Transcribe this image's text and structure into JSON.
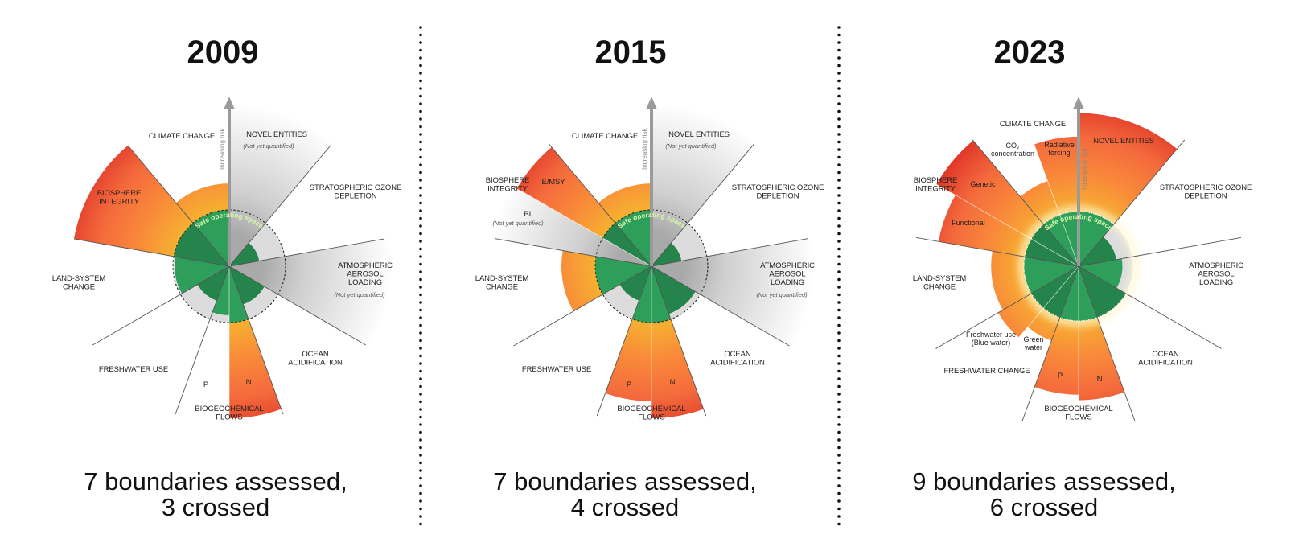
{
  "colors": {
    "safe_green": "#2e9e5b",
    "safe_green_dark": "#24844b",
    "globe_grey": "#dcdcdc",
    "risk_low": "#f6b130",
    "risk_mid": "#f98a3a",
    "risk_high": "#e0372a",
    "not_quantified_grey": "#c4c4c4",
    "separator_dots": "#111111"
  },
  "panels": [
    {
      "year": "2009",
      "caption": [
        "7 boundaries assessed,",
        "3 crossed"
      ],
      "safe_label": "Safe operating space",
      "risk_label": "Increasing risk",
      "labels": {
        "climate": [
          "CLIMATE CHANGE"
        ],
        "novel": [
          "NOVEL ENTITIES"
        ],
        "novel_note": [
          "(Not yet quantified)"
        ],
        "ozone": [
          "STRATOSPHERIC OZONE",
          "DEPLETION"
        ],
        "aerosol": [
          "ATMOSPHERIC",
          "AEROSOL",
          "LOADING"
        ],
        "aerosol_note": [
          "(Not yet quantified)"
        ],
        "ocean": [
          "OCEAN",
          "ACIDIFICATION"
        ],
        "biogeo": [
          "BIOGEOCHEMICAL",
          "FLOWS"
        ],
        "p": [
          "P"
        ],
        "n": [
          "N"
        ],
        "freshwater": [
          "FRESHWATER USE"
        ],
        "land": [
          "LAND-SYSTEM",
          "CHANGE"
        ],
        "biosphere": [
          "BIOSPHERE",
          "INTEGRITY"
        ]
      },
      "segments": [
        {
          "key": "novel",
          "status": "not quantified",
          "level": null
        },
        {
          "key": "ozone",
          "status": "safe",
          "level": 0.54
        },
        {
          "key": "aerosol",
          "status": "not quantified",
          "level": null
        },
        {
          "key": "ocean",
          "status": "safe",
          "level": 0.72
        },
        {
          "key": "n",
          "status": "crossed",
          "level": 2.7
        },
        {
          "key": "p",
          "status": "safe",
          "level": 0.87
        },
        {
          "key": "freshwater",
          "status": "safe",
          "level": 0.65
        },
        {
          "key": "land",
          "status": "safe",
          "level": 0.97
        },
        {
          "key": "biosphere",
          "status": "crossed",
          "level": 2.8
        },
        {
          "key": "climate",
          "status": "crossed",
          "level": 1.47
        }
      ]
    },
    {
      "year": "2015",
      "caption": [
        "7 boundaries assessed,",
        "4 crossed"
      ],
      "safe_label": "Safe operating space",
      "risk_label": "Increasing risk",
      "labels": {
        "climate": [
          "CLIMATE CHANGE"
        ],
        "novel": [
          "NOVEL ENTITIES"
        ],
        "novel_note": [
          "(Not yet quantified)"
        ],
        "ozone": [
          "STRATOSPHERIC OZONE",
          "DEPLETION"
        ],
        "aerosol": [
          "ATMOSPHERIC",
          "AEROSOL",
          "LOADING"
        ],
        "aerosol_note": [
          "(Not yet quantified)"
        ],
        "ocean": [
          "OCEAN",
          "ACIDIFICATION"
        ],
        "biogeo": [
          "BIOGEOCHEMICAL",
          "FLOWS"
        ],
        "p": [
          "P"
        ],
        "n": [
          "N"
        ],
        "freshwater": [
          "FRESHWATER USE"
        ],
        "land": [
          "LAND-SYSTEM",
          "CHANGE"
        ],
        "biosphere": [
          "BIOSPHERE",
          "INTEGRITY"
        ],
        "emsy": [
          "E/MSY"
        ],
        "bii": [
          "BII"
        ],
        "bii_note": [
          "(Not yet quantified)"
        ]
      },
      "segments": [
        {
          "key": "novel",
          "status": "not quantified",
          "level": null
        },
        {
          "key": "ozone",
          "status": "safe",
          "level": 0.54
        },
        {
          "key": "aerosol",
          "status": "not quantified",
          "level": null
        },
        {
          "key": "ocean",
          "status": "safe",
          "level": 0.9
        },
        {
          "key": "n",
          "status": "crossed",
          "level": 2.7
        },
        {
          "key": "p",
          "status": "crossed",
          "level": 2.4
        },
        {
          "key": "freshwater",
          "status": "safe",
          "level": 0.65
        },
        {
          "key": "land",
          "status": "crossed",
          "level": 1.6
        },
        {
          "key": "bii",
          "status": "not quantified",
          "level": null
        },
        {
          "key": "emsy",
          "status": "crossed",
          "level": 2.76
        },
        {
          "key": "climate",
          "status": "crossed",
          "level": 1.47
        }
      ]
    },
    {
      "year": "2023",
      "caption": [
        "9 boundaries assessed,",
        "6 crossed"
      ],
      "safe_label": "Safe operating space",
      "risk_label": "Increasing risk",
      "labels": {
        "climate": [
          "CLIMATE CHANGE"
        ],
        "co2": [
          "CO₂",
          "concentration"
        ],
        "rf": [
          "Radiative",
          "forcing"
        ],
        "novel": [
          "NOVEL ENTITIES"
        ],
        "ozone": [
          "STRATOSPHERIC OZONE",
          "DEPLETION"
        ],
        "aerosol": [
          "ATMOSPHERIC",
          "AEROSOL",
          "LOADING"
        ],
        "ocean": [
          "OCEAN",
          "ACIDIFICATION"
        ],
        "biogeo": [
          "BIOGEOCHEMICAL",
          "FLOWS"
        ],
        "p": [
          "P"
        ],
        "n": [
          "N"
        ],
        "freshwater": [
          "FRESHWATER CHANGE"
        ],
        "fw_blue": [
          "Freshwater use",
          "(Blue water)"
        ],
        "fw_green": [
          "Green",
          "water"
        ],
        "land": [
          "LAND-SYSTEM",
          "CHANGE"
        ],
        "biosphere": [
          "BIOSPHERE",
          "INTEGRITY"
        ],
        "genetic": [
          "Genetic"
        ],
        "functional": [
          "Functional"
        ]
      },
      "segments": [
        {
          "key": "novel",
          "status": "crossed",
          "level": 2.8
        },
        {
          "key": "ozone",
          "status": "safe",
          "level": 0.7
        },
        {
          "key": "aerosol",
          "status": "safe",
          "level": 0.8
        },
        {
          "key": "ocean",
          "status": "safe",
          "level": 1.0
        },
        {
          "key": "n",
          "status": "crossed",
          "level": 2.45
        },
        {
          "key": "p",
          "status": "crossed",
          "level": 2.35
        },
        {
          "key": "fw_green",
          "status": "crossed",
          "level": 1.45
        },
        {
          "key": "fw_blue",
          "status": "crossed",
          "level": 1.7
        },
        {
          "key": "land",
          "status": "crossed",
          "level": 1.6
        },
        {
          "key": "functional",
          "status": "crossed",
          "level": 2.6
        },
        {
          "key": "genetic",
          "status": "crossed",
          "level": 3.0
        },
        {
          "key": "co2",
          "status": "crossed",
          "level": 1.66
        },
        {
          "key": "rf",
          "status": "crossed",
          "level": 2.37
        }
      ]
    }
  ]
}
